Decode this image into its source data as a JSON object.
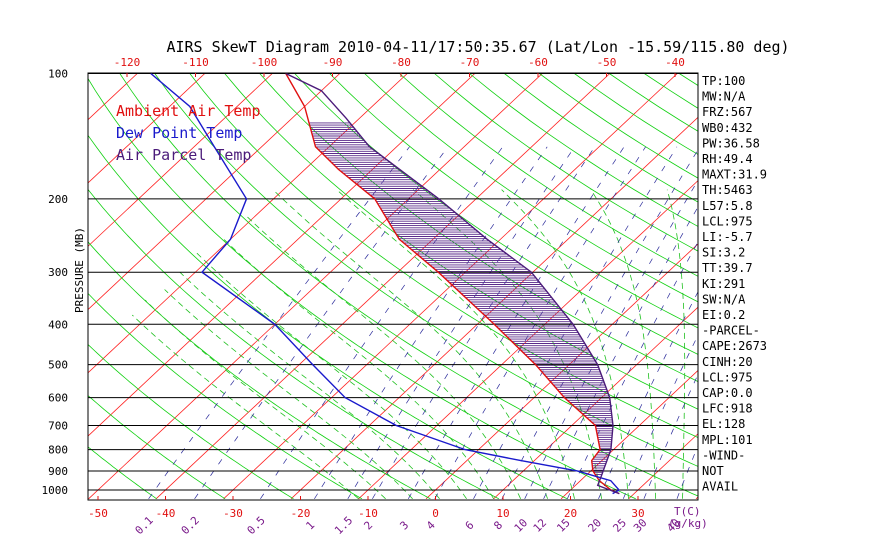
{
  "chart_data": {
    "type": "line",
    "title": "AIRS SkewT Diagram 2010-04-11/17:50:35.67 (Lat/Lon -15.59/115.80 deg)",
    "ylabel": "PRESSURE (MB)",
    "y_scale": "log",
    "ylim": [
      1050,
      100
    ],
    "xlim": [
      -52,
      40
    ],
    "skew": "isotherms slant to the right",
    "top_temperature_ticks": [
      -120,
      -110,
      -100,
      -90,
      -80,
      -70,
      -60,
      -50,
      -40
    ],
    "bottom_temperature_ticks": [
      -50,
      -40,
      -30,
      -20,
      -10,
      0,
      10,
      20,
      30
    ],
    "bottom_temperature_unit": "T(C)",
    "pressure_ticks": [
      100,
      200,
      300,
      400,
      500,
      600,
      700,
      800,
      900,
      1000
    ],
    "mixing_ratio_ticks": [
      "0.1",
      "0.2",
      "0.5",
      "1",
      "1.5",
      "2",
      "3",
      "4",
      "6",
      "8",
      "10",
      "12",
      "15",
      "20",
      "25",
      "30",
      "40"
    ],
    "mixing_ratio_unit": "(g/kg)",
    "legend_placement": "top-left",
    "legend": [
      {
        "label": "Ambient Air Temp",
        "color": "#e01010"
      },
      {
        "label": "Dew Point Temp",
        "color": "#1a1acc"
      },
      {
        "label": "Air Parcel Temp",
        "color": "#4b1b7a"
      }
    ],
    "colors": {
      "isotherm": "#ff2020",
      "dry_adiabat": "#10d010",
      "moist_adiabat": "#20c020",
      "mixing_ratio": "#2a2a9a",
      "isobar": "#000000",
      "cape_hatch": "#5a2a8a"
    },
    "series": [
      {
        "name": "Ambient Air Temp",
        "points": [
          [
            1020,
            27.8
          ],
          [
            1000,
            26
          ],
          [
            950,
            22.8
          ],
          [
            900,
            20.3
          ],
          [
            850,
            18.5
          ],
          [
            800,
            18
          ],
          [
            700,
            13.5
          ],
          [
            600,
            4.5
          ],
          [
            500,
            -5
          ],
          [
            400,
            -17.5
          ],
          [
            300,
            -34
          ],
          [
            250,
            -45
          ],
          [
            200,
            -55
          ],
          [
            170,
            -65
          ],
          [
            150,
            -72
          ],
          [
            120,
            -80
          ],
          [
            100,
            -88
          ]
        ]
      },
      {
        "name": "Dew Point Temp",
        "points": [
          [
            1020,
            26.8
          ],
          [
            1000,
            27.2
          ],
          [
            950,
            24.5
          ],
          [
            900,
            18
          ],
          [
            850,
            8
          ],
          [
            800,
            -2
          ],
          [
            700,
            -16
          ],
          [
            600,
            -28
          ],
          [
            500,
            -38
          ],
          [
            400,
            -50
          ],
          [
            300,
            -69
          ],
          [
            250,
            -70
          ],
          [
            200,
            -74
          ],
          [
            150,
            -87
          ],
          [
            120,
            -97
          ],
          [
            100,
            -108
          ]
        ]
      },
      {
        "name": "Air Parcel Temp",
        "points": [
          [
            1020,
            27.8
          ],
          [
            975,
            23.3
          ],
          [
            918,
            22.2
          ],
          [
            800,
            19.6
          ],
          [
            700,
            16.1
          ],
          [
            600,
            11.2
          ],
          [
            500,
            4.2
          ],
          [
            400,
            -5.8
          ],
          [
            300,
            -20.2
          ],
          [
            250,
            -32
          ],
          [
            200,
            -45.5
          ],
          [
            150,
            -64
          ],
          [
            128,
            -72
          ],
          [
            110,
            -80
          ],
          [
            100,
            -88
          ]
        ]
      }
    ]
  },
  "indices": [
    "TP:100",
    "MW:N/A",
    "FRZ:567",
    "WB0:432",
    "PW:36.58",
    "RH:49.4",
    "MAXT:31.9",
    "TH:5463",
    "L57:5.8",
    "LCL:975",
    "LI:-5.7",
    "SI:3.2",
    "TT:39.7",
    "KI:291",
    "SW:N/A",
    "EI:0.2",
    "-PARCEL-",
    "CAPE:2673",
    "CINH:20",
    "LCL:975",
    "CAP:0.0",
    "LFC:918",
    "EL:128",
    "MPL:101",
    "-WIND-",
    "NOT",
    "AVAIL"
  ]
}
